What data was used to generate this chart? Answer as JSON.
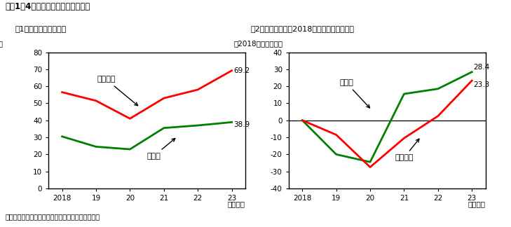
{
  "title": "付図1－4　業種別の経常利益の水準",
  "chart1_title": "（1）業種別の経常利益",
  "chart1_ylabel": "（兆円）",
  "chart1_xlabel": "（年度）",
  "chart2_title": "（2）コロナ禍前（2018年度）比の経常利益",
  "chart2_ylabel": "（2018年度比、％）",
  "chart2_xlabel": "（年度）",
  "year_labels": [
    "2018",
    "19",
    "20",
    "21",
    "22",
    "23"
  ],
  "chart1_non_manufacturing": [
    56.5,
    51.5,
    41.0,
    53.0,
    58.0,
    69.2
  ],
  "chart1_manufacturing": [
    30.5,
    24.5,
    23.0,
    35.5,
    37.0,
    38.9
  ],
  "chart2_manufacturing": [
    0.0,
    -20.0,
    -24.5,
    15.5,
    18.5,
    28.4
  ],
  "chart2_non_manufacturing": [
    0.0,
    -8.5,
    -27.5,
    -10.5,
    2.5,
    23.3
  ],
  "non_manufacturing_color": "#ff0000",
  "manufacturing_color": "#008000",
  "chart1_ylim": [
    0,
    80
  ],
  "chart1_yticks": [
    0,
    10,
    20,
    30,
    40,
    50,
    60,
    70,
    80
  ],
  "chart2_ylim": [
    -40,
    40
  ],
  "chart2_yticks": [
    -40,
    -30,
    -20,
    -10,
    0,
    10,
    20,
    30,
    40
  ],
  "note": "（備考）財務省「法人企業統計季報」により作成。",
  "chart1_label_nonmfg": "非製造業",
  "chart1_label_mfg": "製造業",
  "chart2_label_mfg": "製造業",
  "chart2_label_nonmfg": "非製造業",
  "chart1_end_label_nonmfg": "69.2",
  "chart1_end_label_mfg": "38.9",
  "chart2_end_label_mfg": "28.4",
  "chart2_end_label_nonmfg": "23.3"
}
